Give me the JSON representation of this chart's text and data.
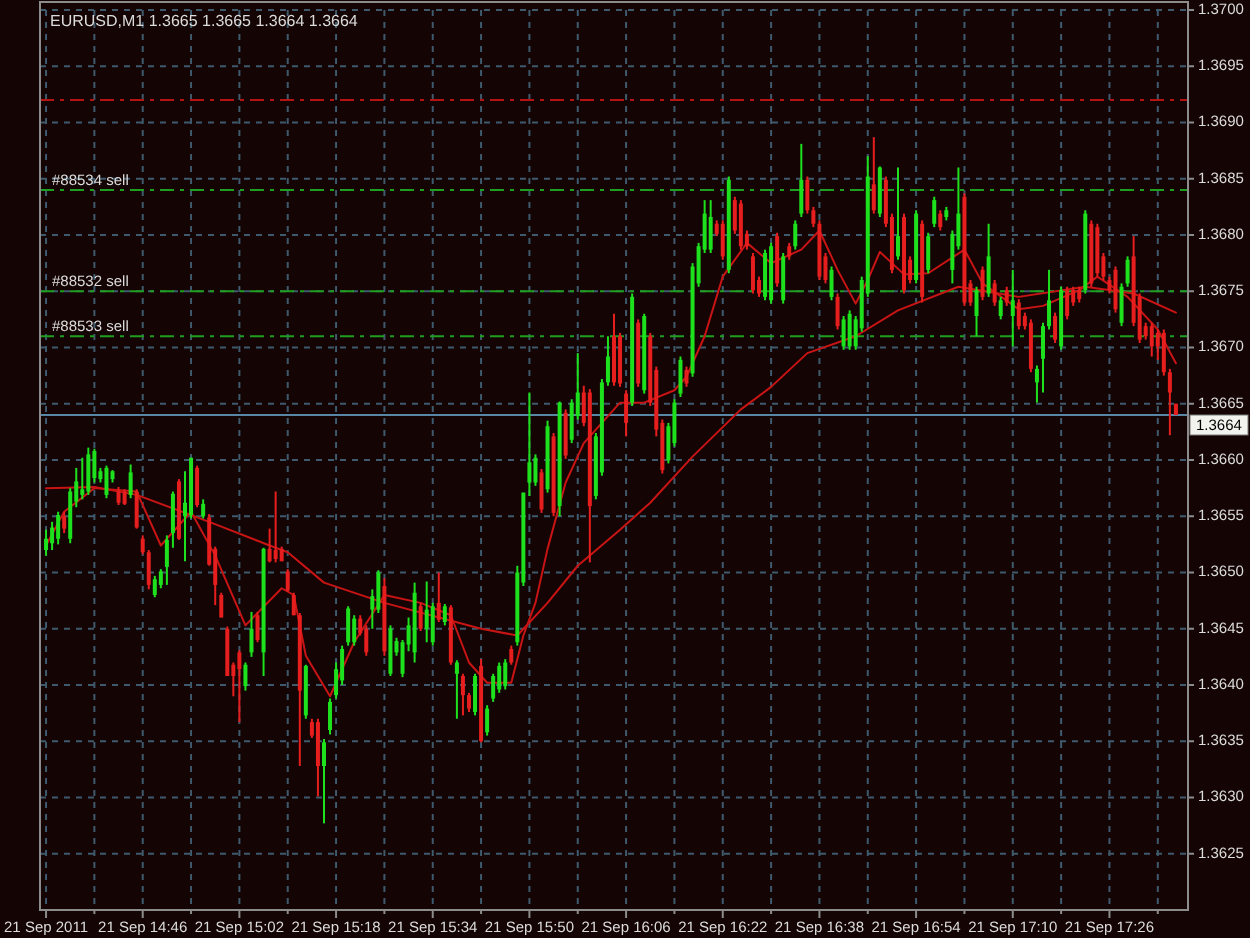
{
  "chart_data": {
    "type": "candlestick",
    "title": "EURUSD,M1 1.3665 1.3665 1.3664 1.3664",
    "x": [
      "2011-09-21T14:30",
      "2011-09-21T14:31",
      "2011-09-21T14:32",
      "2011-09-21T14:33",
      "2011-09-21T14:34",
      "2011-09-21T14:35",
      "2011-09-21T14:36",
      "2011-09-21T14:37",
      "2011-09-21T14:38",
      "2011-09-21T14:39",
      "2011-09-21T14:40",
      "2011-09-21T14:41",
      "2011-09-21T14:42",
      "2011-09-21T14:43",
      "2011-09-21T14:44",
      "2011-09-21T14:45",
      "2011-09-21T14:46",
      "2011-09-21T14:47",
      "2011-09-21T14:48",
      "2011-09-21T14:49",
      "2011-09-21T14:50",
      "2011-09-21T14:51",
      "2011-09-21T14:52",
      "2011-09-21T14:53",
      "2011-09-21T14:54",
      "2011-09-21T14:55",
      "2011-09-21T14:56",
      "2011-09-21T14:57",
      "2011-09-21T14:58",
      "2011-09-21T14:59",
      "2011-09-21T15:00",
      "2011-09-21T15:01",
      "2011-09-21T15:02",
      "2011-09-21T15:03",
      "2011-09-21T15:04",
      "2011-09-21T15:05",
      "2011-09-21T15:06",
      "2011-09-21T15:07",
      "2011-09-21T15:08",
      "2011-09-21T15:09",
      "2011-09-21T15:10",
      "2011-09-21T15:11",
      "2011-09-21T15:12",
      "2011-09-21T15:13",
      "2011-09-21T15:14",
      "2011-09-21T15:15",
      "2011-09-21T15:16",
      "2011-09-21T15:17",
      "2011-09-21T15:18",
      "2011-09-21T15:19",
      "2011-09-21T15:20",
      "2011-09-21T15:21",
      "2011-09-21T15:22",
      "2011-09-21T15:23",
      "2011-09-21T15:24",
      "2011-09-21T15:25",
      "2011-09-21T15:26",
      "2011-09-21T15:27",
      "2011-09-21T15:28",
      "2011-09-21T15:29",
      "2011-09-21T15:30",
      "2011-09-21T15:31",
      "2011-09-21T15:32",
      "2011-09-21T15:33",
      "2011-09-21T15:34",
      "2011-09-21T15:35",
      "2011-09-21T15:36",
      "2011-09-21T15:37",
      "2011-09-21T15:38",
      "2011-09-21T15:39",
      "2011-09-21T15:40",
      "2011-09-21T15:41",
      "2011-09-21T15:42",
      "2011-09-21T15:43",
      "2011-09-21T15:44",
      "2011-09-21T15:45",
      "2011-09-21T15:46",
      "2011-09-21T15:47",
      "2011-09-21T15:48",
      "2011-09-21T15:49",
      "2011-09-21T15:50",
      "2011-09-21T15:51",
      "2011-09-21T15:52",
      "2011-09-21T15:53",
      "2011-09-21T15:54",
      "2011-09-21T15:55",
      "2011-09-21T15:56",
      "2011-09-21T15:57",
      "2011-09-21T15:58",
      "2011-09-21T15:59",
      "2011-09-21T16:00",
      "2011-09-21T16:01",
      "2011-09-21T16:02",
      "2011-09-21T16:03",
      "2011-09-21T16:04",
      "2011-09-21T16:05",
      "2011-09-21T16:06",
      "2011-09-21T16:07",
      "2011-09-21T16:08",
      "2011-09-21T16:09",
      "2011-09-21T16:10",
      "2011-09-21T16:11",
      "2011-09-21T16:12",
      "2011-09-21T16:13",
      "2011-09-21T16:14",
      "2011-09-21T16:15",
      "2011-09-21T16:16",
      "2011-09-21T16:17",
      "2011-09-21T16:18",
      "2011-09-21T16:19",
      "2011-09-21T16:20",
      "2011-09-21T16:21",
      "2011-09-21T16:22",
      "2011-09-21T16:23",
      "2011-09-21T16:24",
      "2011-09-21T16:25",
      "2011-09-21T16:26",
      "2011-09-21T16:27",
      "2011-09-21T16:28",
      "2011-09-21T16:29",
      "2011-09-21T16:30",
      "2011-09-21T16:31",
      "2011-09-21T16:32",
      "2011-09-21T16:33",
      "2011-09-21T16:34",
      "2011-09-21T16:35",
      "2011-09-21T16:36",
      "2011-09-21T16:37",
      "2011-09-21T16:38",
      "2011-09-21T16:39",
      "2011-09-21T16:40",
      "2011-09-21T16:41",
      "2011-09-21T16:42",
      "2011-09-21T16:43",
      "2011-09-21T16:44",
      "2011-09-21T16:45",
      "2011-09-21T16:46",
      "2011-09-21T16:47",
      "2011-09-21T16:48",
      "2011-09-21T16:49",
      "2011-09-21T16:50",
      "2011-09-21T16:51",
      "2011-09-21T16:52",
      "2011-09-21T16:53",
      "2011-09-21T16:54",
      "2011-09-21T16:55",
      "2011-09-21T16:56",
      "2011-09-21T16:57",
      "2011-09-21T16:58",
      "2011-09-21T16:59",
      "2011-09-21T17:00",
      "2011-09-21T17:01",
      "2011-09-21T17:02",
      "2011-09-21T17:03",
      "2011-09-21T17:04",
      "2011-09-21T17:05",
      "2011-09-21T17:06",
      "2011-09-21T17:07",
      "2011-09-21T17:08",
      "2011-09-21T17:09",
      "2011-09-21T17:10",
      "2011-09-21T17:11",
      "2011-09-21T17:12",
      "2011-09-21T17:13",
      "2011-09-21T17:14",
      "2011-09-21T17:15",
      "2011-09-21T17:16",
      "2011-09-21T17:17",
      "2011-09-21T17:18",
      "2011-09-21T17:19",
      "2011-09-21T17:20",
      "2011-09-21T17:21",
      "2011-09-21T17:22",
      "2011-09-21T17:23",
      "2011-09-21T17:24",
      "2011-09-21T17:25",
      "2011-09-21T17:26",
      "2011-09-21T17:27",
      "2011-09-21T17:28",
      "2011-09-21T17:29",
      "2011-09-21T17:30",
      "2011-09-21T17:31",
      "2011-09-21T17:32",
      "2011-09-21T17:33",
      "2011-09-21T17:34",
      "2011-09-21T17:35",
      "2011-09-21T17:36",
      "2011-09-21T17:37"
    ],
    "ohlc": [
      [
        1.3652,
        1.36538,
        1.36515,
        1.3653
      ],
      [
        1.36526,
        1.36545,
        1.3652,
        1.3654
      ],
      [
        1.3653,
        1.36554,
        1.36525,
        1.36551
      ],
      [
        1.3655,
        1.36554,
        1.36535,
        1.36539
      ],
      [
        1.3653,
        1.36575,
        1.36526,
        1.36572
      ],
      [
        1.36563,
        1.36593,
        1.36558,
        1.36581
      ],
      [
        1.36569,
        1.36602,
        1.36565,
        1.36574
      ],
      [
        1.36572,
        1.36611,
        1.36569,
        1.36605
      ],
      [
        1.36584,
        1.3661,
        1.3658,
        1.36608
      ],
      [
        1.36583,
        1.36593,
        1.3658,
        1.3659
      ],
      [
        1.36569,
        1.36595,
        1.36566,
        1.36593
      ],
      [
        1.36583,
        1.36591,
        1.3658,
        1.3659
      ],
      [
        1.36572,
        1.36576,
        1.3656,
        1.36562
      ],
      [
        1.36572,
        1.36574,
        1.3656,
        1.36561
      ],
      [
        1.36569,
        1.36596,
        1.36566,
        1.36589
      ],
      [
        1.36572,
        1.36574,
        1.36539,
        1.3654
      ],
      [
        1.3653,
        1.36533,
        1.36516,
        1.36518
      ],
      [
        1.36518,
        1.3652,
        1.36485,
        1.36489
      ],
      [
        1.3648,
        1.36497,
        1.36478,
        1.36494
      ],
      [
        1.36489,
        1.36503,
        1.36486,
        1.36501
      ],
      [
        1.36505,
        1.36533,
        1.36489,
        1.36529
      ],
      [
        1.36535,
        1.36572,
        1.36522,
        1.3657
      ],
      [
        1.36581,
        1.36583,
        1.36529,
        1.3653
      ],
      [
        1.3655,
        1.3659,
        1.3651,
        1.36562
      ],
      [
        1.36551,
        1.36602,
        1.36548,
        1.36602
      ],
      [
        1.36593,
        1.36595,
        1.36558,
        1.3656
      ],
      [
        1.3655,
        1.36565,
        1.36548,
        1.36561
      ],
      [
        1.36549,
        1.36552,
        1.36506,
        1.36507
      ],
      [
        1.36521,
        1.36523,
        1.36471,
        1.36489
      ],
      [
        1.3648,
        1.36482,
        1.3646,
        1.3646
      ],
      [
        1.3645,
        1.36452,
        1.36408,
        1.36408
      ],
      [
        1.36418,
        1.3642,
        1.3639,
        1.36408
      ],
      [
        1.36429,
        1.36431,
        1.36367,
        1.36414
      ],
      [
        1.36399,
        1.3642,
        1.36395,
        1.36418
      ],
      [
        1.36429,
        1.36465,
        1.36425,
        1.3645
      ],
      [
        1.36462,
        1.36465,
        1.36438,
        1.3644
      ],
      [
        1.36429,
        1.36522,
        1.36408,
        1.36521
      ],
      [
        1.36521,
        1.36539,
        1.36509,
        1.3651
      ],
      [
        1.3652,
        1.36572,
        1.36509,
        1.36512
      ],
      [
        1.36521,
        1.36523,
        1.3651,
        1.3651
      ],
      [
        1.36501,
        1.36503,
        1.36483,
        1.36484
      ],
      [
        1.3648,
        1.36482,
        1.36462,
        1.36462
      ],
      [
        1.36462,
        1.36464,
        1.36328,
        1.36395
      ],
      [
        1.36373,
        1.36418,
        1.3637,
        1.36417
      ],
      [
        1.36367,
        1.3637,
        1.36353,
        1.36355
      ],
      [
        1.36367,
        1.3637,
        1.36301,
        1.36328
      ],
      [
        1.36328,
        1.36352,
        1.36277,
        1.36349
      ],
      [
        1.3636,
        1.36388,
        1.36356,
        1.36385
      ],
      [
        1.36391,
        1.3642,
        1.36388,
        1.36414
      ],
      [
        1.36404,
        1.36435,
        1.364,
        1.36432
      ],
      [
        1.36438,
        1.3647,
        1.36435,
        1.36468
      ],
      [
        1.36438,
        1.36462,
        1.36435,
        1.36459
      ],
      [
        1.36459,
        1.36462,
        1.36444,
        1.36446
      ],
      [
        1.3645,
        1.36453,
        1.36426,
        1.36429
      ],
      [
        1.36467,
        1.36485,
        1.3645,
        1.36479
      ],
      [
        1.36467,
        1.36502,
        1.36464,
        1.365
      ],
      [
        1.36488,
        1.36495,
        1.36426,
        1.3643
      ],
      [
        1.3641,
        1.36453,
        1.36408,
        1.3645
      ],
      [
        1.36429,
        1.36442,
        1.36426,
        1.36439
      ],
      [
        1.3641,
        1.3644,
        1.36407,
        1.36438
      ],
      [
        1.36436,
        1.3646,
        1.3643,
        1.36453
      ],
      [
        1.36429,
        1.36491,
        1.3642,
        1.36482
      ],
      [
        1.3647,
        1.36473,
        1.36448,
        1.3645
      ],
      [
        1.3645,
        1.36492,
        1.36438,
        1.36467
      ],
      [
        1.36438,
        1.36473,
        1.36435,
        1.3647
      ],
      [
        1.36473,
        1.365,
        1.36456,
        1.36458
      ],
      [
        1.36456,
        1.36472,
        1.36453,
        1.3647
      ],
      [
        1.36469,
        1.36471,
        1.36418,
        1.3642
      ],
      [
        1.3641,
        1.36422,
        1.3637,
        1.3642
      ],
      [
        1.36408,
        1.3641,
        1.36373,
        1.36391
      ],
      [
        1.36391,
        1.36393,
        1.36376,
        1.36379
      ],
      [
        1.36376,
        1.3641,
        1.36373,
        1.36408
      ],
      [
        1.36417,
        1.36423,
        1.36349,
        1.3635
      ],
      [
        1.36358,
        1.36382,
        1.36355,
        1.36379
      ],
      [
        1.36388,
        1.3641,
        1.36385,
        1.36408
      ],
      [
        1.36396,
        1.3642,
        1.36393,
        1.36417
      ],
      [
        1.36399,
        1.36423,
        1.36396,
        1.3642
      ],
      [
        1.36432,
        1.36435,
        1.36418,
        1.3642
      ],
      [
        1.36438,
        1.36506,
        1.36435,
        1.365
      ],
      [
        1.36491,
        1.36571,
        1.36488,
        1.36571
      ],
      [
        1.3658,
        1.3666,
        1.36568,
        1.36598
      ],
      [
        1.3658,
        1.36605,
        1.36577,
        1.36602
      ],
      [
        1.36589,
        1.36592,
        1.36553,
        1.36556
      ],
      [
        1.36574,
        1.36635,
        1.36571,
        1.3663
      ],
      [
        1.36621,
        1.36624,
        1.3655,
        1.36553
      ],
      [
        1.36559,
        1.36652,
        1.3655,
        1.36651
      ],
      [
        1.36642,
        1.36645,
        1.36601,
        1.36604
      ],
      [
        1.36618,
        1.36654,
        1.36615,
        1.36651
      ],
      [
        1.36639,
        1.36695,
        1.36636,
        1.3666
      ],
      [
        1.3666,
        1.36666,
        1.3663,
        1.36633
      ],
      [
        1.3666,
        1.36663,
        1.36509,
        1.36559
      ],
      [
        1.36568,
        1.36624,
        1.36565,
        1.36621
      ],
      [
        1.36589,
        1.36672,
        1.36586,
        1.36669
      ],
      [
        1.36669,
        1.3671,
        1.36666,
        1.36692
      ],
      [
        1.3671,
        1.3673,
        1.36666,
        1.36669
      ],
      [
        1.3671,
        1.36713,
        1.36665,
        1.36668
      ],
      [
        1.36659,
        1.36662,
        1.36621,
        1.36633
      ],
      [
        1.36651,
        1.36748,
        1.36648,
        1.36745
      ],
      [
        1.36722,
        1.36725,
        1.36665,
        1.36668
      ],
      [
        1.36662,
        1.3673,
        1.36659,
        1.36728
      ],
      [
        1.3671,
        1.36713,
        1.36648,
        1.36651
      ],
      [
        1.3668,
        1.36683,
        1.36621,
        1.36627
      ],
      [
        1.36633,
        1.36636,
        1.36588,
        1.36591
      ],
      [
        1.366,
        1.36633,
        1.36597,
        1.3663
      ],
      [
        1.36615,
        1.36654,
        1.36612,
        1.36651
      ],
      [
        1.36659,
        1.36692,
        1.36656,
        1.36689
      ],
      [
        1.3668,
        1.36683,
        1.36665,
        1.36668
      ],
      [
        1.36677,
        1.36775,
        1.36674,
        1.36772
      ],
      [
        1.36757,
        1.36793,
        1.36754,
        1.3679
      ],
      [
        1.36787,
        1.36831,
        1.36784,
        1.36819
      ],
      [
        1.36787,
        1.36831,
        1.36784,
        1.36816
      ],
      [
        1.3681,
        1.36813,
        1.36799,
        1.36801
      ],
      [
        1.3681,
        1.36813,
        1.36778,
        1.36781
      ],
      [
        1.36769,
        1.36852,
        1.36766,
        1.36849
      ],
      [
        1.36831,
        1.36834,
        1.36801,
        1.36804
      ],
      [
        1.36828,
        1.36831,
        1.36787,
        1.3679
      ],
      [
        1.36801,
        1.36804,
        1.36787,
        1.3679
      ],
      [
        1.36781,
        1.36784,
        1.36748,
        1.36751
      ],
      [
        1.3676,
        1.36763,
        1.36745,
        1.36748
      ],
      [
        1.36745,
        1.36787,
        1.36742,
        1.36784
      ],
      [
        1.36742,
        1.36793,
        1.36739,
        1.3679
      ],
      [
        1.36799,
        1.36802,
        1.36754,
        1.36757
      ],
      [
        1.36742,
        1.36784,
        1.36739,
        1.36781
      ],
      [
        1.3679,
        1.36793,
        1.36778,
        1.36781
      ],
      [
        1.3679,
        1.36813,
        1.36787,
        1.3681
      ],
      [
        1.36819,
        1.36881,
        1.36816,
        1.36849
      ],
      [
        1.36849,
        1.36852,
        1.36819,
        1.36822
      ],
      [
        1.36822,
        1.36825,
        1.36807,
        1.3681
      ],
      [
        1.3681,
        1.36813,
        1.3676,
        1.36763
      ],
      [
        1.36781,
        1.36784,
        1.36757,
        1.3676
      ],
      [
        1.36745,
        1.36772,
        1.36742,
        1.36769
      ],
      [
        1.36745,
        1.36748,
        1.36716,
        1.36719
      ],
      [
        1.36701,
        1.36728,
        1.36698,
        1.36725
      ],
      [
        1.36701,
        1.36733,
        1.36698,
        1.3673
      ],
      [
        1.36701,
        1.36728,
        1.36698,
        1.36725
      ],
      [
        1.36717,
        1.36763,
        1.36714,
        1.3676
      ],
      [
        1.36748,
        1.3687,
        1.36745,
        1.36852
      ],
      [
        1.36845,
        1.36887,
        1.36819,
        1.36822
      ],
      [
        1.36819,
        1.36861,
        1.36816,
        1.3686
      ],
      [
        1.36849,
        1.36852,
        1.36807,
        1.3681
      ],
      [
        1.36816,
        1.36819,
        1.36766,
        1.36769
      ],
      [
        1.36781,
        1.3686,
        1.36778,
        1.36799
      ],
      [
        1.36816,
        1.36819,
        1.36748,
        1.36751
      ],
      [
        1.36778,
        1.36781,
        1.36757,
        1.3676
      ],
      [
        1.3676,
        1.36822,
        1.36757,
        1.36819
      ],
      [
        1.3681,
        1.36813,
        1.3674,
        1.36745
      ],
      [
        1.36769,
        1.36802,
        1.36766,
        1.36799
      ],
      [
        1.3681,
        1.36834,
        1.36807,
        1.36831
      ],
      [
        1.36819,
        1.36822,
        1.36804,
        1.36807
      ],
      [
        1.36816,
        1.36825,
        1.36813,
        1.36822
      ],
      [
        1.36769,
        1.36804,
        1.36757,
        1.36801
      ],
      [
        1.3679,
        1.3686,
        1.36787,
        1.36819
      ],
      [
        1.36834,
        1.36837,
        1.36737,
        1.3674
      ],
      [
        1.36757,
        1.3676,
        1.36737,
        1.3674
      ],
      [
        1.36728,
        1.36754,
        1.3671,
        1.36751
      ],
      [
        1.36769,
        1.36772,
        1.36742,
        1.36745
      ],
      [
        1.36748,
        1.3681,
        1.36745,
        1.36781
      ],
      [
        1.36757,
        1.3676,
        1.36737,
        1.3674
      ],
      [
        1.36728,
        1.36745,
        1.36725,
        1.36742
      ],
      [
        1.36751,
        1.36754,
        1.36737,
        1.3674
      ],
      [
        1.36728,
        1.36769,
        1.36701,
        1.36742
      ],
      [
        1.3674,
        1.36743,
        1.36716,
        1.36719
      ],
      [
        1.36728,
        1.36731,
        1.36716,
        1.36719
      ],
      [
        1.36722,
        1.36725,
        1.36678,
        1.36681
      ],
      [
        1.36669,
        1.36684,
        1.36651,
        1.36681
      ],
      [
        1.3669,
        1.36722,
        1.3666,
        1.36719
      ],
      [
        1.36719,
        1.36769,
        1.36716,
        1.36742
      ],
      [
        1.36728,
        1.36731,
        1.36704,
        1.36707
      ],
      [
        1.36701,
        1.36754,
        1.36698,
        1.36751
      ],
      [
        1.36751,
        1.36754,
        1.36725,
        1.36728
      ],
      [
        1.36751,
        1.36754,
        1.36737,
        1.3674
      ],
      [
        1.36751,
        1.36754,
        1.3674,
        1.36743
      ],
      [
        1.36751,
        1.36822,
        1.36748,
        1.36819
      ],
      [
        1.3681,
        1.36813,
        1.36754,
        1.36757
      ],
      [
        1.36807,
        1.3681,
        1.36763,
        1.36766
      ],
      [
        1.36781,
        1.36784,
        1.3676,
        1.36763
      ],
      [
        1.3676,
        1.36763,
        1.36748,
        1.36751
      ],
      [
        1.36769,
        1.36772,
        1.36731,
        1.36734
      ],
      [
        1.36722,
        1.36757,
        1.36719,
        1.36754
      ],
      [
        1.36757,
        1.36781,
        1.36754,
        1.36778
      ],
      [
        1.36781,
        1.36799,
        1.36719,
        1.36722
      ],
      [
        1.36745,
        1.36748,
        1.36704,
        1.36707
      ],
      [
        1.36719,
        1.36722,
        1.36707,
        1.3671
      ],
      [
        1.36719,
        1.36722,
        1.36692,
        1.36701
      ],
      [
        1.36713,
        1.36716,
        1.36689,
        1.36701
      ],
      [
        1.36713,
        1.36716,
        1.36675,
        1.36678
      ],
      [
        1.36678,
        1.36681,
        1.36622,
        1.3666
      ],
      [
        1.3665,
        1.3665,
        1.3664,
        1.3664
      ]
    ],
    "series": [
      {
        "type": "line",
        "color": "#c81414",
        "x": [
          "2011-09-21T14:30",
          "2011-09-21T14:38",
          "2011-09-21T14:45",
          "2011-09-21T14:57",
          "2011-09-21T15:07",
          "2011-09-21T15:10",
          "2011-09-21T15:16",
          "2011-09-21T15:26",
          "2011-09-21T15:42",
          "2011-09-21T15:48",
          "2011-09-21T15:53",
          "2011-09-21T15:58",
          "2011-09-21T16:05",
          "2011-09-21T16:10",
          "2011-09-21T16:17",
          "2011-09-21T16:25",
          "2011-09-21T16:30",
          "2011-09-21T16:36",
          "2011-09-21T16:44",
          "2011-09-21T16:51",
          "2011-09-21T17:01",
          "2011-09-21T17:11",
          "2011-09-21T17:22",
          "2011-09-21T17:30",
          "2011-09-21T17:37"
        ],
        "values": [
          1.36575,
          1.36576,
          1.36569,
          1.36545,
          1.36524,
          1.36518,
          1.36491,
          1.36473,
          1.3645,
          1.36444,
          1.36473,
          1.36506,
          1.36538,
          1.36562,
          1.36603,
          1.36645,
          1.36665,
          1.36695,
          1.3671,
          1.36733,
          1.36754,
          1.36745,
          1.36754,
          1.36748,
          1.36731
        ]
      },
      {
        "type": "line",
        "color": "#c81414",
        "x": [
          "2011-09-21T14:30",
          "2011-09-21T14:33",
          "2011-09-21T14:38",
          "2011-09-21T14:45",
          "2011-09-21T14:49",
          "2011-09-21T14:54",
          "2011-09-21T14:58",
          "2011-09-21T15:03",
          "2011-09-21T15:09",
          "2011-09-21T15:11",
          "2011-09-21T15:13",
          "2011-09-21T15:17",
          "2011-09-21T15:21",
          "2011-09-21T15:26",
          "2011-09-21T15:32",
          "2011-09-21T15:37",
          "2011-09-21T15:40",
          "2011-09-21T15:43",
          "2011-09-21T15:47",
          "2011-09-21T15:49",
          "2011-09-21T15:51",
          "2011-09-21T15:53",
          "2011-09-21T15:56",
          "2011-09-21T15:59",
          "2011-09-21T16:03",
          "2011-09-21T16:05",
          "2011-09-21T16:09",
          "2011-09-21T16:14",
          "2011-09-21T16:16",
          "2011-09-21T16:19",
          "2011-09-21T16:22",
          "2011-09-21T16:26",
          "2011-09-21T16:30",
          "2011-09-21T16:35",
          "2011-09-21T16:38",
          "2011-09-21T16:41",
          "2011-09-21T16:44",
          "2011-09-21T16:46",
          "2011-09-21T16:48",
          "2011-09-21T16:52",
          "2011-09-21T16:56",
          "2011-09-21T17:02",
          "2011-09-21T17:05",
          "2011-09-21T17:11",
          "2011-09-21T17:15",
          "2011-09-21T17:21",
          "2011-09-21T17:24",
          "2011-09-21T17:29",
          "2011-09-21T17:34",
          "2011-09-21T17:37"
        ],
        "values": [
          1.36524,
          1.36554,
          1.36575,
          1.36572,
          1.36524,
          1.36554,
          1.36515,
          1.36453,
          1.36486,
          1.3648,
          1.36426,
          1.3639,
          1.36438,
          1.3648,
          1.36473,
          1.36462,
          1.3642,
          1.36402,
          1.36402,
          1.36444,
          1.36473,
          1.36521,
          1.3658,
          1.36615,
          1.36639,
          1.36651,
          1.36651,
          1.36662,
          1.36674,
          1.3671,
          1.36763,
          1.36793,
          1.36775,
          1.36787,
          1.36804,
          1.36769,
          1.36739,
          1.3676,
          1.36785,
          1.36765,
          1.36766,
          1.36787,
          1.36757,
          1.36734,
          1.36737,
          1.36751,
          1.36763,
          1.36745,
          1.36716,
          1.36686
        ]
      }
    ],
    "xlim": [
      "2011-09-21T14:29",
      "2011-09-21T17:39"
    ],
    "xticks": [
      {
        "value": "2011-09-21T14:30",
        "label": "21 Sep 2011"
      },
      {
        "value": "2011-09-21T14:38",
        "label": null
      },
      {
        "value": "2011-09-21T14:46",
        "label": "21 Sep 14:46"
      },
      {
        "value": "2011-09-21T14:54",
        "label": null
      },
      {
        "value": "2011-09-21T15:02",
        "label": "21 Sep 15:02"
      },
      {
        "value": "2011-09-21T15:10",
        "label": null
      },
      {
        "value": "2011-09-21T15:18",
        "label": "21 Sep 15:18"
      },
      {
        "value": "2011-09-21T15:26",
        "label": null
      },
      {
        "value": "2011-09-21T15:34",
        "label": "21 Sep 15:34"
      },
      {
        "value": "2011-09-21T15:42",
        "label": null
      },
      {
        "value": "2011-09-21T15:50",
        "label": "21 Sep 15:50"
      },
      {
        "value": "2011-09-21T15:58",
        "label": null
      },
      {
        "value": "2011-09-21T16:06",
        "label": "21 Sep 16:06"
      },
      {
        "value": "2011-09-21T16:14",
        "label": null
      },
      {
        "value": "2011-09-21T16:22",
        "label": "21 Sep 16:22"
      },
      {
        "value": "2011-09-21T16:30",
        "label": null
      },
      {
        "value": "2011-09-21T16:38",
        "label": "21 Sep 16:38"
      },
      {
        "value": "2011-09-21T16:46",
        "label": null
      },
      {
        "value": "2011-09-21T16:54",
        "label": "21 Sep 16:54"
      },
      {
        "value": "2011-09-21T17:02",
        "label": null
      },
      {
        "value": "2011-09-21T17:10",
        "label": "21 Sep 17:10"
      },
      {
        "value": "2011-09-21T17:18",
        "label": null
      },
      {
        "value": "2011-09-21T17:26",
        "label": "21 Sep 17:26"
      },
      {
        "value": "2011-09-21T17:34",
        "label": null
      }
    ],
    "ylim": [
      1.362,
      1.37
    ],
    "yticks": [
      1.3625,
      {
        "value": 1.363,
        "label": "1.3630"
      },
      1.3635,
      {
        "value": 1.364,
        "label": "1.3640"
      },
      1.3645,
      {
        "value": 1.365,
        "label": "1.3650"
      },
      1.3655,
      {
        "value": 1.366,
        "label": "1.3660"
      },
      1.3665,
      {
        "value": 1.367,
        "label": "1.3670"
      },
      1.3675,
      {
        "value": 1.368,
        "label": "1.3680"
      },
      1.3685,
      {
        "value": 1.369,
        "label": "1.3690"
      },
      1.3695,
      {
        "value": 1.37,
        "label": "1.3700"
      }
    ],
    "grid": true,
    "ref_lines": [
      {
        "axis": "y",
        "value": 1.3692,
        "color": "#b41414",
        "line_style": "dashed"
      },
      {
        "axis": "y",
        "value": 1.3684,
        "label": "#88534 sell",
        "color": "#1f9f1f",
        "line_style": "dashed"
      },
      {
        "axis": "y",
        "value": 1.3675,
        "label": "#88532 sell",
        "color": "#1f9f1f",
        "line_style": "dashed"
      },
      {
        "axis": "y",
        "value": 1.3671,
        "label": "#88533 sell",
        "color": "#1f9f1f",
        "line_style": "dashed"
      },
      {
        "axis": "y",
        "value": 1.3664,
        "label": "1.3664",
        "color": "#5a86a6",
        "line_style": "solid"
      }
    ]
  }
}
